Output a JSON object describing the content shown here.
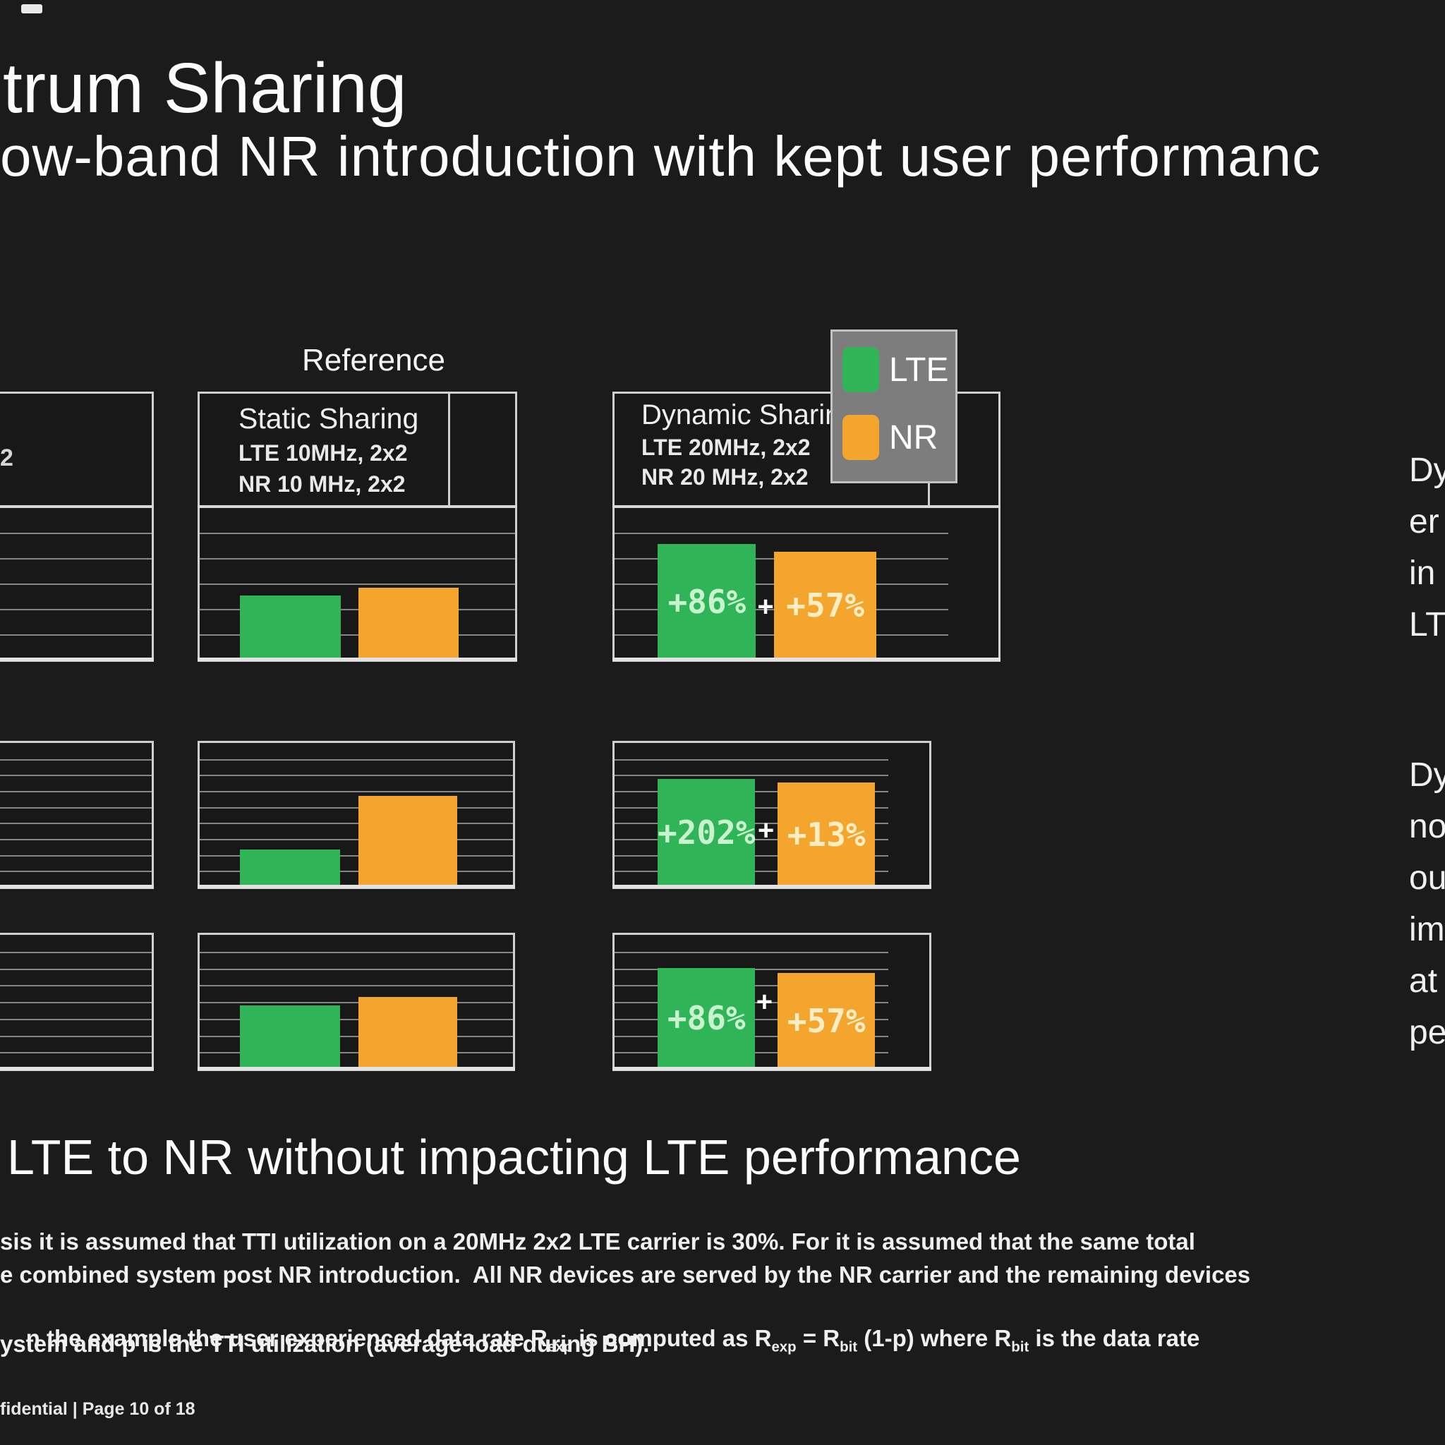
{
  "slide": {
    "title": "trum Sharing",
    "subtitle": "ow-band NR introduction with kept user performanc",
    "reference_label": "Reference",
    "footer": "fidential | Page 10 of 18"
  },
  "colors": {
    "background": "#1b1b1b",
    "lte_green": "#2fb457",
    "nr_orange": "#f4a52d",
    "panel_border": "#cfcfcf",
    "legend_bg": "#7d7d7d"
  },
  "legend": {
    "items": [
      {
        "label": "LTE",
        "color": "#2fb457"
      },
      {
        "label": "NR",
        "color": "#f4a52d"
      }
    ]
  },
  "panels": {
    "left_partial": {
      "header_fragment": "2"
    },
    "static": {
      "title": "Static Sharing",
      "line1": "LTE 10MHz, 2x2",
      "line2": "NR 10 MHz, 2x2"
    },
    "dynamic": {
      "title": "Dynamic Sharing",
      "line1": "LTE 20MHz, 2x2",
      "line2": "NR 20 MHz, 2x2"
    }
  },
  "right_notes": {
    "block1_lines": [
      "Dy",
      "er",
      "in",
      "LT"
    ],
    "block2_lines": [
      "Dy",
      "no",
      "ou",
      "im",
      "at",
      "pe"
    ]
  },
  "bottom": {
    "headline": "LTE to NR without impacting LTE performance",
    "para_line1": "sis it is assumed that TTI utilization on a 20MHz 2x2 LTE carrier is 30%. For it is assumed that the same total",
    "para_line2": "e combined system post NR introduction.  All NR devices are served by the NR carrier and the remaining devices",
    "para_line3": {
      "t1": "n the example the user experienced data rate R",
      "sub1": "exp",
      "t2": " is computed as R",
      "sub2": "exp",
      "t3": " = R",
      "sub3": "bit",
      "t4": " (1-p) where R",
      "sub4": "bit",
      "t5": " is the data rate"
    },
    "para_line4": "ystem and p is the TTI utilization (average load during BH)."
  },
  "chart_data": [
    {
      "id": "r1l",
      "type": "bar",
      "row": 1,
      "panel": "left-partial-cutoff",
      "gridline_intervals": 6,
      "bars": []
    },
    {
      "id": "r1s",
      "type": "bar",
      "row": 1,
      "panel": "static-sharing",
      "gridline_intervals": 6,
      "bars": [
        {
          "series": "LTE",
          "x": 0.128,
          "w": 0.32,
          "height_frac": 0.42,
          "label": ""
        },
        {
          "series": "NR",
          "x": 0.503,
          "w": 0.318,
          "height_frac": 0.473,
          "label": ""
        }
      ]
    },
    {
      "id": "r1d",
      "type": "bar",
      "row": 1,
      "panel": "dynamic-sharing",
      "gridline_intervals": 6,
      "plus_x": 0.372,
      "plus_bottom": 0.24,
      "bars": [
        {
          "series": "LTE",
          "x": 0.113,
          "w": 0.255,
          "height_frac": 0.76,
          "label": "+86%"
        },
        {
          "series": "NR",
          "x": 0.416,
          "w": 0.266,
          "height_frac": 0.71,
          "label": "+57%"
        }
      ]
    },
    {
      "id": "r2l",
      "type": "bar",
      "row": 2,
      "panel": "left-partial-cutoff",
      "gridline_intervals": 9,
      "bars": []
    },
    {
      "id": "r2s",
      "type": "bar",
      "row": 2,
      "panel": "static-sharing",
      "gridline_intervals": 9,
      "bars": [
        {
          "series": "LTE",
          "x": 0.129,
          "w": 0.32,
          "height_frac": 0.262,
          "label": ""
        },
        {
          "series": "NR",
          "x": 0.507,
          "w": 0.316,
          "height_frac": 0.633,
          "label": ""
        }
      ]
    },
    {
      "id": "r2d",
      "type": "bar",
      "row": 2,
      "panel": "dynamic-sharing",
      "gridline_intervals": 9,
      "plus_x": 0.455,
      "plus_bottom": 0.28,
      "bars": [
        {
          "series": "LTE",
          "x": 0.137,
          "w": 0.31,
          "height_frac": 0.752,
          "label": "+202%"
        },
        {
          "series": "NR",
          "x": 0.518,
          "w": 0.31,
          "height_frac": 0.724,
          "label": "+13%"
        }
      ]
    },
    {
      "id": "r3l",
      "type": "bar",
      "row": 3,
      "panel": "left-partial-cutoff",
      "gridline_intervals": 8,
      "bars": []
    },
    {
      "id": "r3s",
      "type": "bar",
      "row": 3,
      "panel": "static-sharing",
      "gridline_intervals": 8,
      "bars": [
        {
          "series": "LTE",
          "x": 0.129,
          "w": 0.32,
          "height_frac": 0.474,
          "label": ""
        },
        {
          "series": "NR",
          "x": 0.507,
          "w": 0.316,
          "height_frac": 0.536,
          "label": ""
        }
      ]
    },
    {
      "id": "r3d",
      "type": "bar",
      "row": 3,
      "panel": "dynamic-sharing",
      "gridline_intervals": 8,
      "plus_x": 0.45,
      "plus_bottom": 0.38,
      "bars": [
        {
          "series": "LTE",
          "x": 0.137,
          "w": 0.31,
          "height_frac": 0.755,
          "label": "+86%"
        },
        {
          "series": "NR",
          "x": 0.518,
          "w": 0.31,
          "height_frac": 0.714,
          "label": "+57%"
        }
      ]
    }
  ]
}
